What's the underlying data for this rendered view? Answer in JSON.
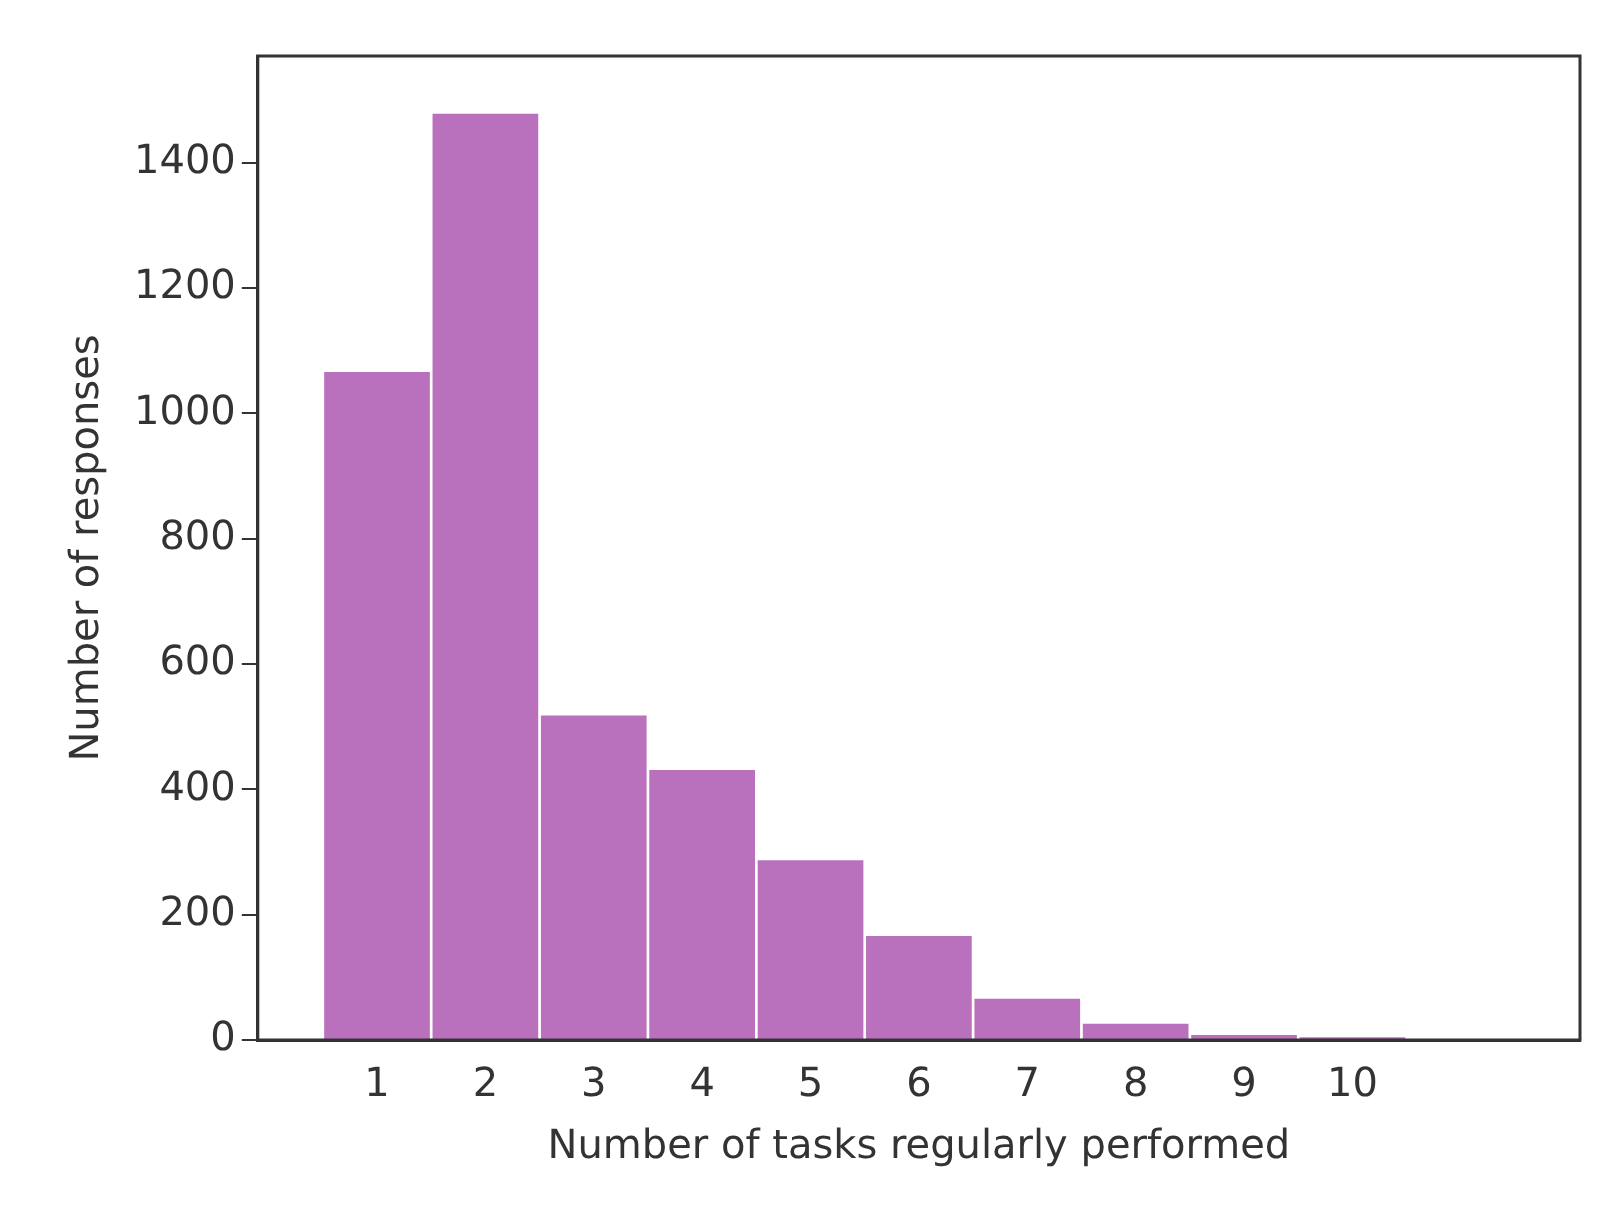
{
  "chart_data": {
    "type": "histogram",
    "xlabel": "Number of tasks regularly performed",
    "ylabel": "Number of responses",
    "bins": [
      0.5,
      1.5,
      2.5,
      3.5,
      4.5,
      5.5,
      6.5,
      7.5,
      8.5,
      9.5,
      10.5
    ],
    "values": [
      1068,
      1480,
      520,
      433,
      289,
      168,
      68,
      28,
      10,
      5
    ],
    "color": "#b970bd",
    "xlim": [
      -0.1,
      12.1
    ],
    "xticks": [
      1,
      2,
      3,
      4,
      5,
      6,
      7,
      8,
      9,
      10
    ],
    "ylim": [
      0,
      1570
    ],
    "yticks": [
      0,
      200,
      400,
      600,
      800,
      1000,
      1200,
      1400
    ],
    "grid": false,
    "legend": false
  }
}
